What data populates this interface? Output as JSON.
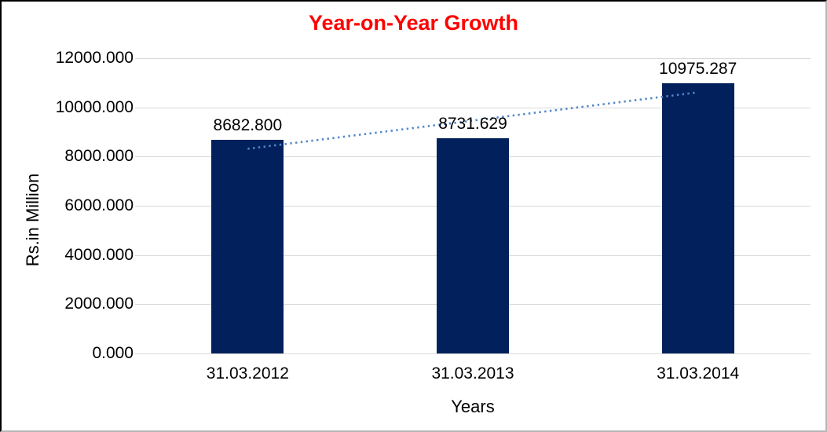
{
  "chart_data": {
    "type": "bar",
    "title": "Year-on-Year Growth",
    "xlabel": "Years",
    "ylabel": "Rs.in Million",
    "categories": [
      "31.03.2012",
      "31.03.2013",
      "31.03.2014"
    ],
    "values": [
      8682.8,
      8731.629,
      10975.287
    ],
    "data_labels": [
      "8682.800",
      "8731.629",
      "10975.287"
    ],
    "ylim": [
      0,
      12000
    ],
    "ytick_step": 2000,
    "ytick_labels": [
      "0.000",
      "2000.000",
      "4000.000",
      "6000.000",
      "8000.000",
      "10000.000",
      "12000.000"
    ],
    "grid": true,
    "legend": "none",
    "colors": {
      "bar": "#02215c",
      "title": "#ff0000",
      "gridline": "#d9d9d9",
      "text": "#000000",
      "trendline": "#5287c8"
    },
    "trendline": {
      "type": "linear",
      "style": "dotted"
    }
  }
}
